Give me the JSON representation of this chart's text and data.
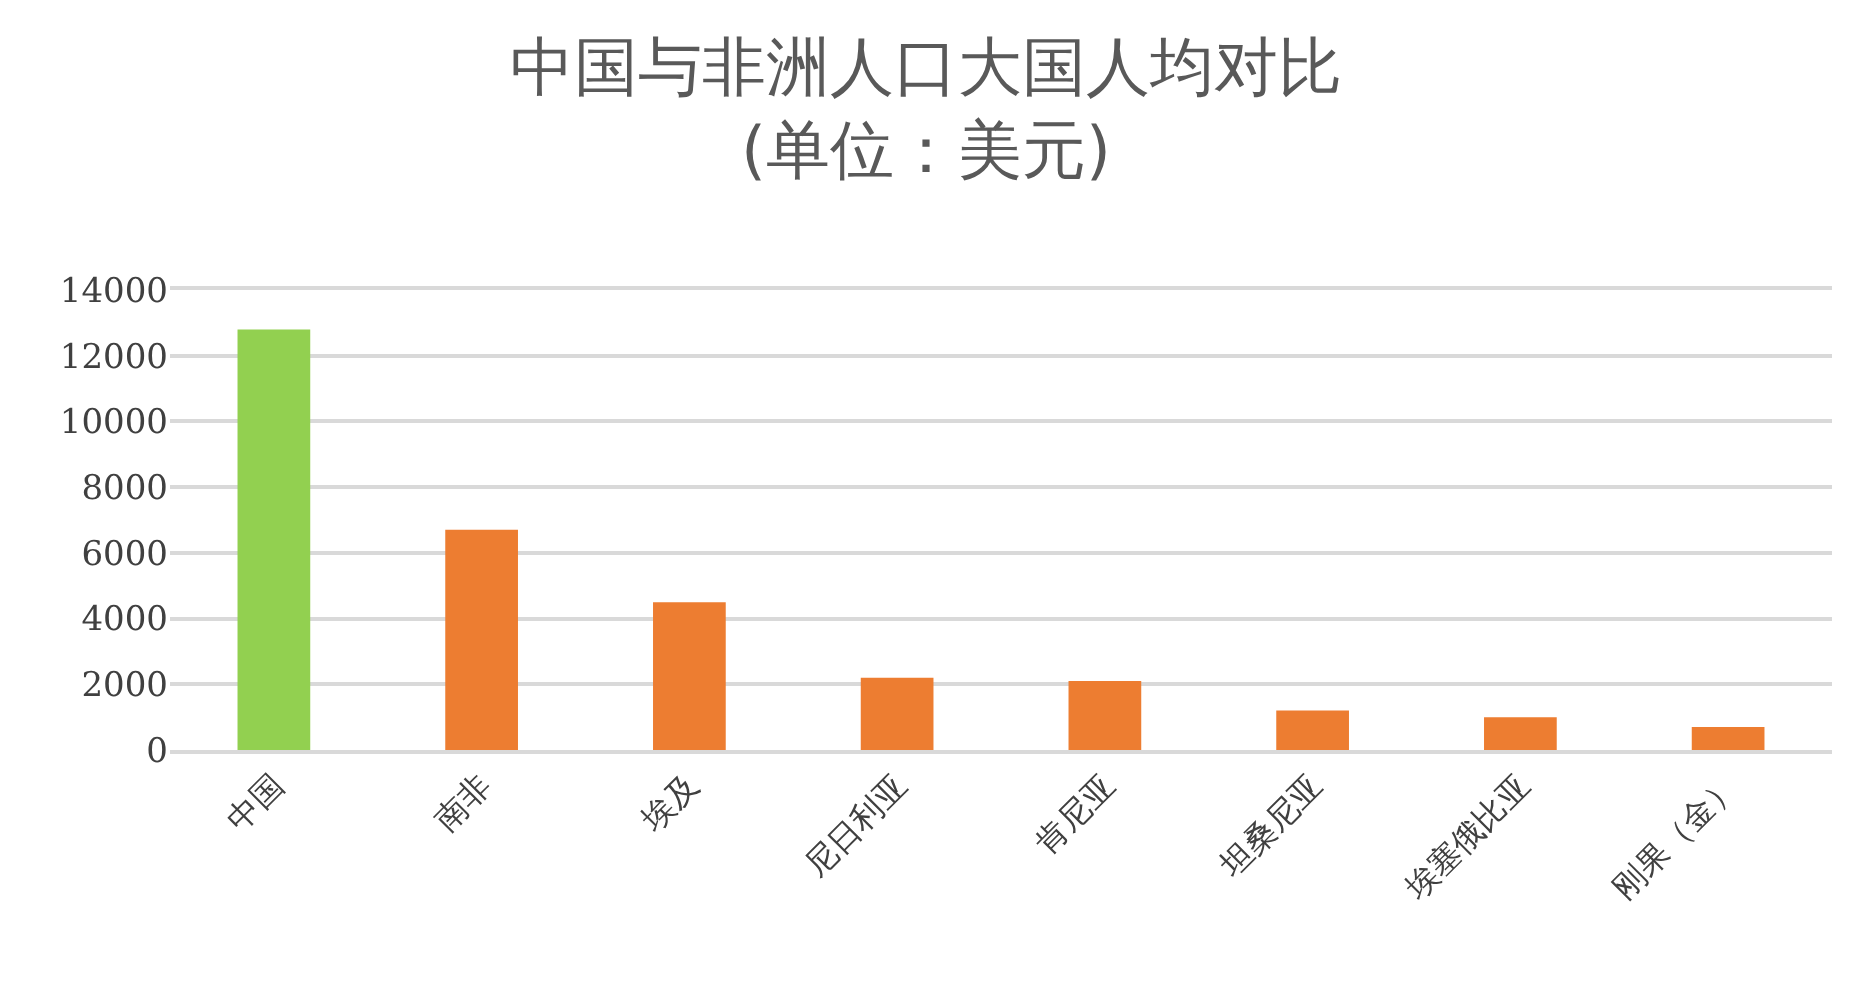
{
  "chart_data": {
    "type": "bar",
    "title": "中国与非洲人口大国人均对比",
    "subtitle": "(单位：美元)",
    "categories": [
      "中国",
      "南非",
      "埃及",
      "尼日利亚",
      "肯尼亚",
      "坦桑尼亚",
      "埃塞俄比亚",
      "刚果（金）"
    ],
    "values": [
      12800,
      6700,
      4500,
      2200,
      2100,
      1200,
      1000,
      700
    ],
    "colors": [
      "#92d050",
      "#ed7d31",
      "#ed7d31",
      "#ed7d31",
      "#ed7d31",
      "#ed7d31",
      "#ed7d31",
      "#ed7d31"
    ],
    "ylim": [
      0,
      14000
    ],
    "yticks": [
      0,
      2000,
      4000,
      6000,
      8000,
      10000,
      12000,
      14000
    ],
    "grid": "y",
    "legend": false
  }
}
